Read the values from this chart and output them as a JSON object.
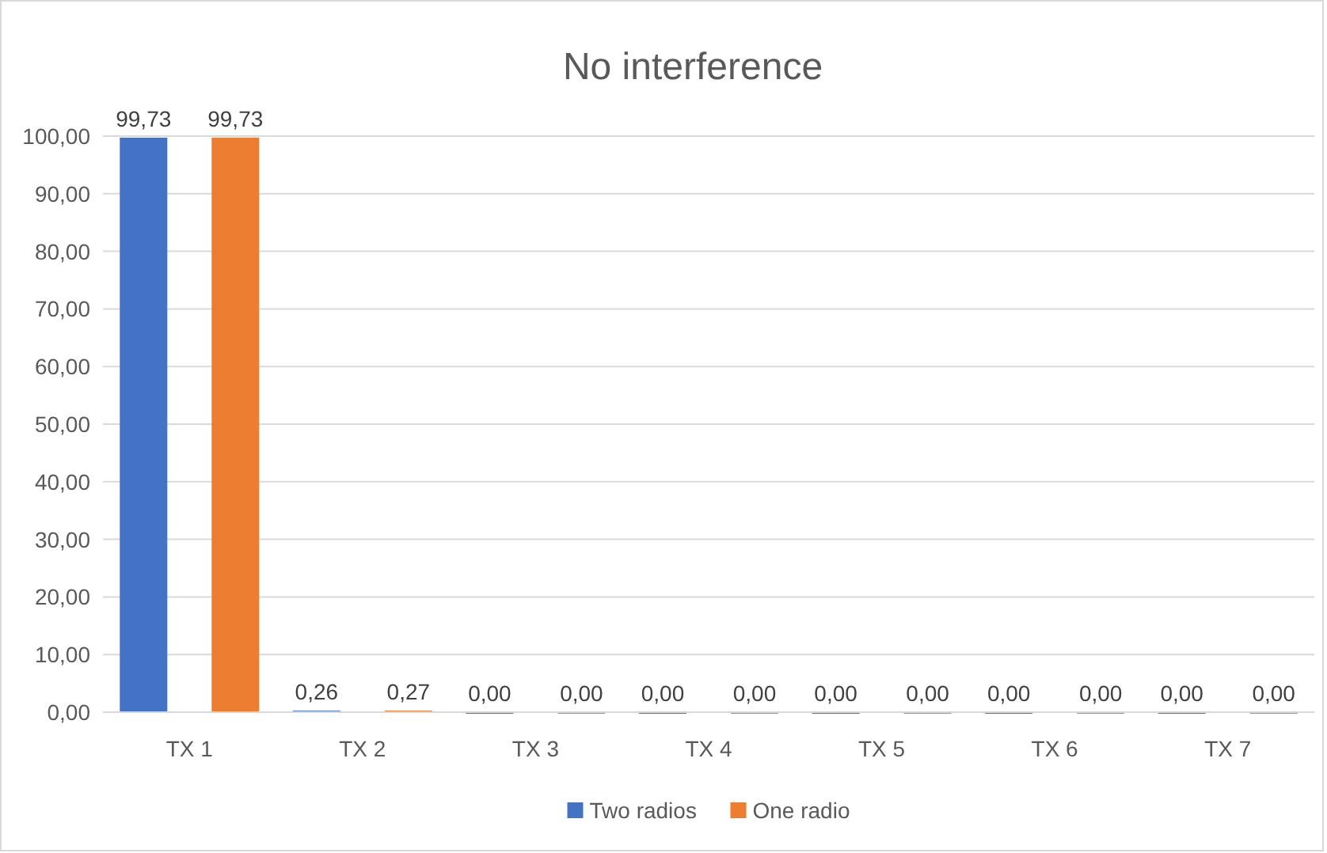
{
  "chart_data": {
    "type": "bar",
    "title": "No interference",
    "categories": [
      "TX 1",
      "TX 2",
      "TX 3",
      "TX 4",
      "TX 5",
      "TX 6",
      "TX 7"
    ],
    "series": [
      {
        "name": "Two radios",
        "color": "#4472c4",
        "values": [
          99.73,
          0.26,
          0,
          0,
          0,
          0,
          0
        ],
        "value_labels": [
          "99,73",
          "0,26",
          "0,00",
          "0,00",
          "0,00",
          "0,00",
          "0,00"
        ]
      },
      {
        "name": "One radio",
        "color": "#ed7d31",
        "values": [
          99.73,
          0.27,
          0,
          0,
          0,
          0,
          0
        ],
        "value_labels": [
          "99,73",
          "0,27",
          "0,00",
          "0,00",
          "0,00",
          "0,00",
          "0,00"
        ]
      }
    ],
    "ylim": [
      0,
      100
    ],
    "yticks": [
      {
        "value": 0,
        "label": "0,00"
      },
      {
        "value": 10,
        "label": "10,00"
      },
      {
        "value": 20,
        "label": "20,00"
      },
      {
        "value": 30,
        "label": "30,00"
      },
      {
        "value": 40,
        "label": "40,00"
      },
      {
        "value": 50,
        "label": "50,00"
      },
      {
        "value": 60,
        "label": "60,00"
      },
      {
        "value": 70,
        "label": "70,00"
      },
      {
        "value": 80,
        "label": "80,00"
      },
      {
        "value": 90,
        "label": "90,00"
      },
      {
        "value": 100,
        "label": "100,00"
      }
    ],
    "grid": "y",
    "legend": "bottom"
  }
}
